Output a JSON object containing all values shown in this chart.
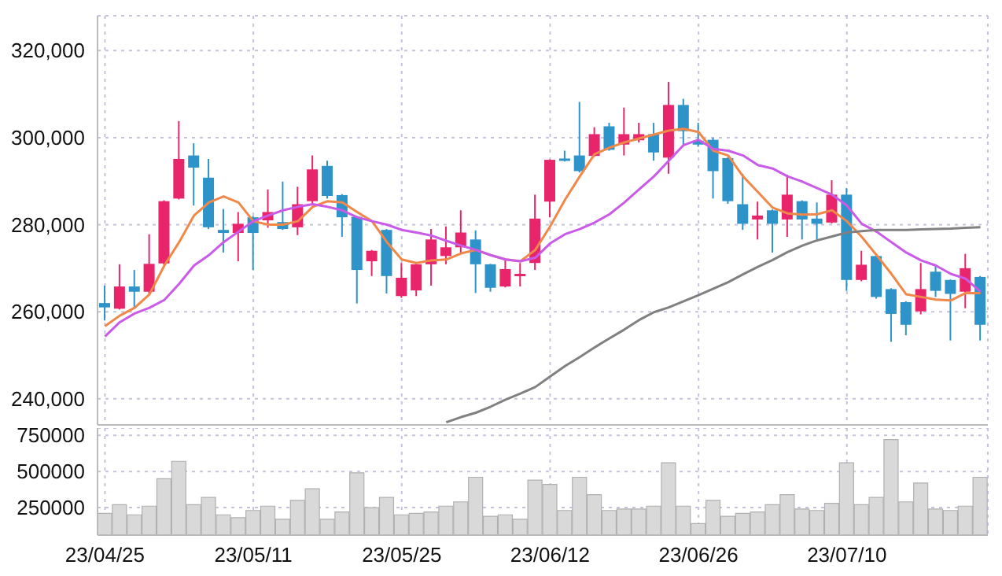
{
  "chart_data": [
    {
      "type": "candlestick",
      "categories": [
        null,
        null,
        null,
        null,
        null,
        null,
        null,
        null,
        null,
        null,
        null,
        null,
        null,
        null,
        null,
        null,
        null,
        null,
        null,
        null,
        null,
        null,
        null,
        null,
        null,
        null,
        null,
        null,
        null,
        null,
        null,
        null,
        null,
        null,
        null,
        null,
        null,
        null,
        null,
        null,
        null,
        null,
        null,
        null,
        null,
        null,
        null,
        null,
        null,
        null,
        null,
        null,
        null,
        null,
        null,
        null,
        null,
        null,
        null,
        null
      ],
      "ohlc": [
        [
          262000,
          266000,
          258000,
          261000
        ],
        [
          260700,
          270900,
          260500,
          265800
        ],
        [
          265800,
          269600,
          260700,
          264600
        ],
        [
          264600,
          277800,
          263800,
          271000
        ],
        [
          271100,
          285600,
          270800,
          285400
        ],
        [
          286000,
          303800,
          285800,
          295100
        ],
        [
          295900,
          298700,
          284400,
          293100
        ],
        [
          290800,
          295100,
          279000,
          279400
        ],
        [
          278800,
          283600,
          273600,
          278100
        ],
        [
          278100,
          282900,
          271600,
          280200
        ],
        [
          281700,
          282000,
          269600,
          278100
        ],
        [
          281000,
          288100,
          279300,
          282900
        ],
        [
          280600,
          289900,
          278800,
          279000
        ],
        [
          279400,
          288700,
          277600,
          284700
        ],
        [
          285400,
          295900,
          284400,
          292700
        ],
        [
          293500,
          294700,
          286000,
          286600
        ],
        [
          286800,
          287000,
          277200,
          281700
        ],
        [
          281800,
          282000,
          261900,
          269600
        ],
        [
          271600,
          274200,
          268200,
          274000
        ],
        [
          278800,
          279000,
          264200,
          268200
        ],
        [
          263600,
          271200,
          263200,
          267800
        ],
        [
          264900,
          271000,
          263600,
          270900
        ],
        [
          270900,
          279000,
          266000,
          276600
        ],
        [
          272800,
          279600,
          270900,
          274800
        ],
        [
          274800,
          283300,
          273600,
          278200
        ],
        [
          276600,
          278700,
          264300,
          270900
        ],
        [
          270900,
          271000,
          264600,
          265500
        ],
        [
          265800,
          271800,
          265600,
          269800
        ],
        [
          268200,
          271200,
          265800,
          268700
        ],
        [
          271200,
          286900,
          269600,
          281400
        ],
        [
          285300,
          295000,
          281700,
          294900
        ],
        [
          295200,
          297000,
          294500,
          294700
        ],
        [
          295900,
          308200,
          292000,
          292300
        ],
        [
          295800,
          302400,
          295600,
          300800
        ],
        [
          302600,
          303400,
          297000,
          297200
        ],
        [
          298400,
          306900,
          295900,
          300800
        ],
        [
          299400,
          303400,
          298900,
          300800
        ],
        [
          300800,
          303400,
          294700,
          296600
        ],
        [
          295400,
          312800,
          291700,
          307500
        ],
        [
          307500,
          308900,
          298300,
          301500
        ],
        [
          299300,
          303400,
          297900,
          298400
        ],
        [
          299500,
          300000,
          286000,
          292300
        ],
        [
          295300,
          295500,
          284800,
          285400
        ],
        [
          284700,
          291700,
          278800,
          280200
        ],
        [
          281200,
          285300,
          276600,
          282100
        ],
        [
          283300,
          283500,
          273600,
          280200
        ],
        [
          281200,
          291500,
          277200,
          286900
        ],
        [
          285400,
          285600,
          276600,
          281200
        ],
        [
          281400,
          285100,
          276600,
          280200
        ],
        [
          280500,
          290200,
          280300,
          286900
        ],
        [
          286900,
          288400,
          264800,
          267300
        ],
        [
          267300,
          274000,
          267000,
          270800
        ],
        [
          272800,
          273000,
          263000,
          263400
        ],
        [
          265200,
          265400,
          253100,
          259500
        ],
        [
          262200,
          262400,
          254600,
          257000
        ],
        [
          260100,
          271200,
          259400,
          265200
        ],
        [
          269200,
          270800,
          263400,
          264800
        ],
        [
          267300,
          267400,
          253400,
          264100
        ],
        [
          264600,
          273300,
          260800,
          270000
        ],
        [
          268000,
          268200,
          253400,
          257000
        ]
      ],
      "colors": [
        "#2e93c8",
        "#e8246a",
        "#2e93c8",
        "#e8246a",
        "#e8246a",
        "#e8246a",
        "#2e93c8",
        "#2e93c8",
        "#2e93c8",
        "#e8246a",
        "#2e93c8",
        "#e8246a",
        "#2e93c8",
        "#e8246a",
        "#e8246a",
        "#2e93c8",
        "#2e93c8",
        "#2e93c8",
        "#e8246a",
        "#2e93c8",
        "#e8246a",
        "#e8246a",
        "#e8246a",
        "#e8246a",
        "#e8246a",
        "#2e93c8",
        "#2e93c8",
        "#e8246a",
        "#e8246a",
        "#e8246a",
        "#e8246a",
        "#2e93c8",
        "#2e93c8",
        "#e8246a",
        "#2e93c8",
        "#e8246a",
        "#e8246a",
        "#2e93c8",
        "#e8246a",
        "#2e93c8",
        "#2e93c8",
        "#2e93c8",
        "#2e93c8",
        "#2e93c8",
        "#e8246a",
        "#2e93c8",
        "#e8246a",
        "#2e93c8",
        "#2e93c8",
        "#e8246a",
        "#2e93c8",
        "#e8246a",
        "#2e93c8",
        "#2e93c8",
        "#2e93c8",
        "#e8246a",
        "#2e93c8",
        "#2e93c8",
        "#e8246a",
        "#2e93c8"
      ],
      "series": [
        {
          "type": "line",
          "color": "#f0884a",
          "values": [
            256700,
            259100,
            260900,
            264000,
            270600,
            276000,
            282100,
            285100,
            286500,
            285100,
            280800,
            280000,
            280000,
            280800,
            284100,
            285400,
            285100,
            282900,
            280800,
            276000,
            272000,
            271200,
            271800,
            272000,
            273400,
            274200,
            273000,
            272000,
            271600,
            274200,
            279600,
            285700,
            291100,
            296200,
            297700,
            298900,
            299800,
            300700,
            301600,
            302000,
            301300,
            297000,
            295900,
            291100,
            287500,
            283900,
            282600,
            282300,
            282400,
            283300,
            280800,
            277200,
            273000,
            268700,
            264000,
            263400,
            262800,
            262600,
            264300,
            264300
          ]
        },
        {
          "type": "line",
          "color": "#c95be8",
          "values": [
            254300,
            257600,
            259600,
            260900,
            262700,
            266400,
            270600,
            273000,
            276000,
            278400,
            280800,
            282100,
            283300,
            284100,
            284700,
            284100,
            283300,
            281700,
            280800,
            280000,
            278800,
            278200,
            277500,
            276300,
            275200,
            274200,
            273000,
            272000,
            271600,
            272400,
            275700,
            277800,
            279000,
            280500,
            282400,
            285100,
            288100,
            291100,
            294700,
            298300,
            299500,
            297400,
            297000,
            295900,
            293700,
            292900,
            291100,
            289900,
            288400,
            286900,
            284400,
            280200,
            278400,
            276000,
            273600,
            271800,
            270600,
            268700,
            267600,
            264600
          ]
        },
        {
          "type": "line",
          "color": "#808080",
          "values": [
            null,
            null,
            null,
            null,
            null,
            null,
            null,
            null,
            null,
            null,
            null,
            null,
            null,
            null,
            null,
            null,
            null,
            null,
            null,
            null,
            null,
            null,
            null,
            234600,
            235800,
            236800,
            238200,
            239800,
            241200,
            242700,
            245100,
            247500,
            249600,
            251800,
            253900,
            255900,
            258100,
            259900,
            261000,
            262400,
            263800,
            265300,
            266800,
            268600,
            270300,
            271900,
            273700,
            275200,
            276400,
            277300,
            278200,
            278500,
            278800,
            278800,
            278800,
            278900,
            279000,
            279100,
            279300,
            279400
          ]
        }
      ],
      "ylim": [
        234000,
        328000
      ],
      "yticks": [
        {
          "value": 240000,
          "label": "240,000"
        },
        {
          "value": 260000,
          "label": "260,000"
        },
        {
          "value": 280000,
          "label": "280,000"
        },
        {
          "value": 300000,
          "label": "300,000"
        },
        {
          "value": 320000,
          "label": "320,000"
        }
      ],
      "grid": true,
      "tick_labels": "y"
    },
    {
      "type": "bar",
      "categories": [
        "23/04/25",
        null,
        null,
        null,
        null,
        null,
        null,
        null,
        null,
        null,
        "23/05/11",
        null,
        null,
        null,
        null,
        null,
        null,
        null,
        null,
        null,
        "23/05/25",
        null,
        null,
        null,
        null,
        null,
        null,
        null,
        null,
        null,
        "23/06/12",
        null,
        null,
        null,
        null,
        null,
        null,
        null,
        null,
        null,
        "23/06/26",
        null,
        null,
        null,
        null,
        null,
        null,
        null,
        null,
        null,
        "23/07/10",
        null,
        null,
        null,
        null,
        null,
        null,
        null,
        null,
        null
      ],
      "values": [
        210000,
        270000,
        200000,
        260000,
        450000,
        570000,
        270000,
        320000,
        200000,
        180000,
        230000,
        260000,
        170000,
        300000,
        380000,
        170000,
        220000,
        490000,
        250000,
        320000,
        200000,
        210000,
        220000,
        260000,
        290000,
        460000,
        190000,
        200000,
        170000,
        440000,
        410000,
        230000,
        460000,
        340000,
        230000,
        240000,
        240000,
        260000,
        560000,
        260000,
        140000,
        300000,
        190000,
        210000,
        220000,
        270000,
        340000,
        240000,
        230000,
        280000,
        560000,
        270000,
        320000,
        720000,
        290000,
        420000,
        240000,
        230000,
        260000,
        460000
      ],
      "color": "#d9d9d9",
      "ylim": [
        60000,
        800000
      ],
      "yticks": [
        250000,
        500000,
        750000
      ],
      "grid": true
    }
  ]
}
